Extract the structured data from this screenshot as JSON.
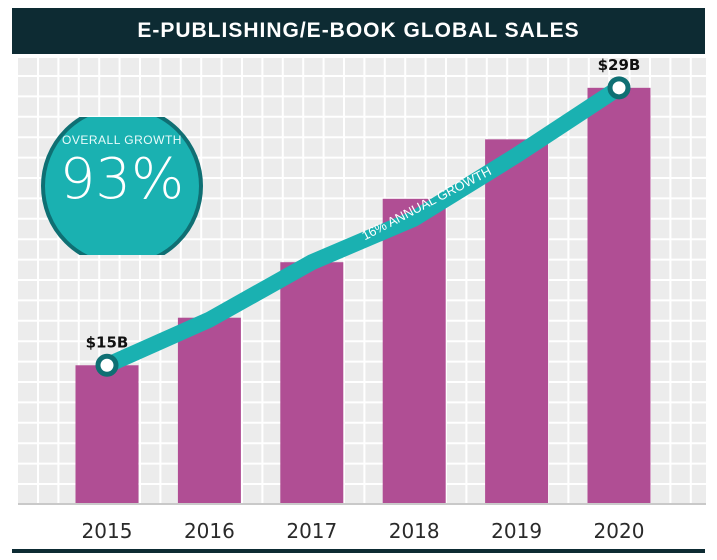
{
  "title": "E-PUBLISHING/E-BOOK GLOBAL SALES",
  "badge": {
    "caption": "OVERALL GROWTH",
    "value": "93%"
  },
  "colors": {
    "bar": "#b04e94",
    "line": "#1ab1b1",
    "header": "#0d2b33",
    "grid_bg": "#ececec",
    "grid_line": "#ffffff",
    "badge_bg": "#1ab1b1",
    "badge_border": "#0f6f73"
  },
  "chart_data": {
    "type": "bar",
    "title": "E-PUBLISHING/E-BOOK GLOBAL SALES",
    "categories": [
      "2015",
      "2016",
      "2017",
      "2018",
      "2019",
      "2020"
    ],
    "series": [
      {
        "values": [
          15,
          17.4,
          20.2,
          23.4,
          26.4,
          29
        ]
      }
    ],
    "line_overlay": {
      "label": "16% ANNUAL GROWTH",
      "values": [
        15,
        17.3,
        20.2,
        22.4,
        25.6,
        29
      ]
    },
    "data_labels": [
      {
        "category": "2015",
        "text": "$15B"
      },
      {
        "category": "2020",
        "text": "$29B"
      }
    ],
    "ylim": [
      8,
      30
    ],
    "grid": true,
    "xlabel": "",
    "ylabel": ""
  }
}
